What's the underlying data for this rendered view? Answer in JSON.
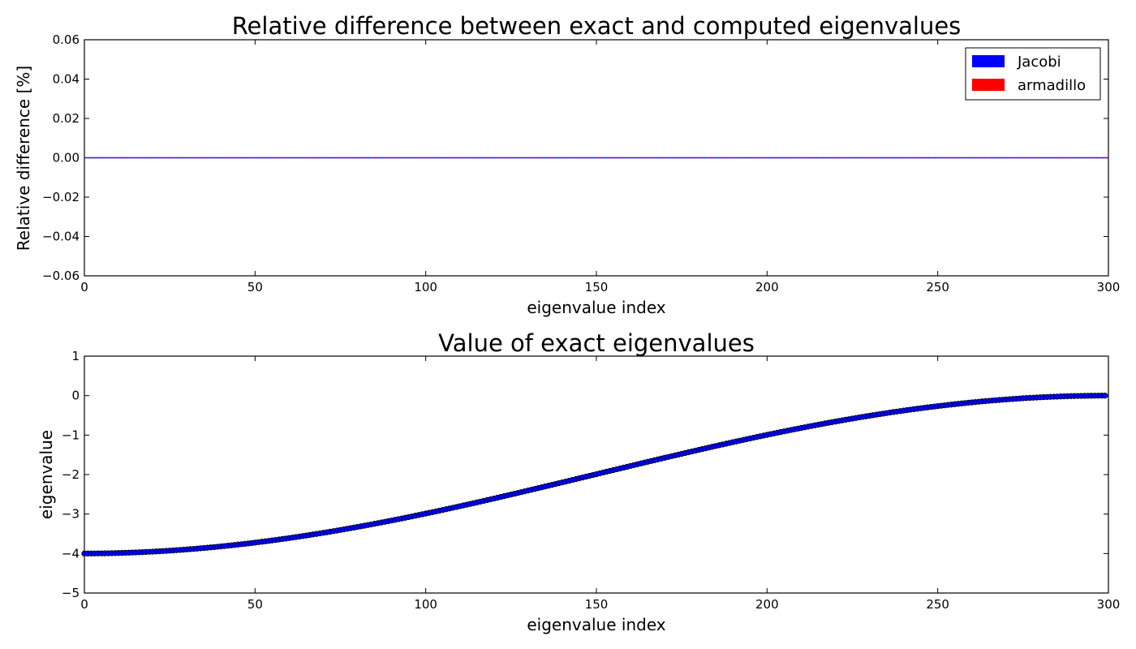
{
  "chart_data": [
    {
      "type": "line",
      "title": "Relative difference between exact and computed eigenvalues",
      "xlabel": "eigenvalue index",
      "ylabel": "Relative difference [%]",
      "xlim": [
        0,
        300
      ],
      "ylim": [
        -0.06,
        0.06
      ],
      "xticks": [
        0,
        50,
        100,
        150,
        200,
        250,
        300
      ],
      "xtick_labels": [
        "0",
        "50",
        "100",
        "150",
        "200",
        "250",
        "300"
      ],
      "yticks": [
        0.06,
        0.04,
        0.02,
        0.0,
        -0.02,
        -0.04,
        -0.06
      ],
      "ytick_labels": [
        "0.06",
        "0.04",
        "0.02",
        "0.00",
        "−0.02",
        "−0.04",
        "−0.06"
      ],
      "grid": false,
      "legend_position": "top-right",
      "series": [
        {
          "name": "Jacobi",
          "color": "#0000ff",
          "constant_value": 0.0,
          "x_range": [
            0,
            300
          ]
        },
        {
          "name": "armadillo",
          "color": "#ff0000",
          "constant_value": 0.0,
          "x_range": [
            0,
            300
          ]
        }
      ]
    },
    {
      "type": "scatter",
      "title": "Value of exact eigenvalues",
      "xlabel": "eigenvalue index",
      "ylabel": "eigenvalue",
      "xlim": [
        0,
        300
      ],
      "ylim": [
        -5,
        1
      ],
      "xticks": [
        0,
        50,
        100,
        150,
        200,
        250,
        300
      ],
      "xtick_labels": [
        "0",
        "50",
        "100",
        "150",
        "200",
        "250",
        "300"
      ],
      "yticks": [
        1,
        0,
        -1,
        -2,
        -3,
        -4,
        -5
      ],
      "ytick_labels": [
        "1",
        "0",
        "−1",
        "−2",
        "−3",
        "−4",
        "−5"
      ],
      "grid": false,
      "marker_color": "#0000ff",
      "n_points": 300,
      "formula": "y = -4 * cos^2(pi * (i + 1) / 602), i = 0..299",
      "sample_points": [
        {
          "x": 0,
          "y": -4.0
        },
        {
          "x": 50,
          "y": -3.72
        },
        {
          "x": 100,
          "y": -3.0
        },
        {
          "x": 150,
          "y": -2.0
        },
        {
          "x": 200,
          "y": -0.99
        },
        {
          "x": 250,
          "y": -0.27
        },
        {
          "x": 299,
          "y": 0.0
        }
      ]
    }
  ]
}
